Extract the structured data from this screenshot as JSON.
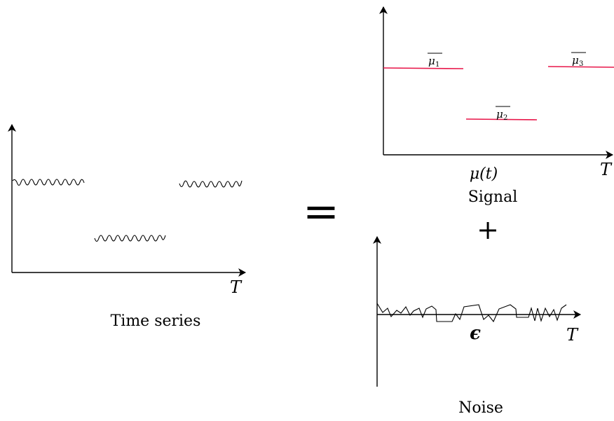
{
  "time_series_panel": {
    "caption": "Time series",
    "axis_label": "T"
  },
  "equals_sign": "=",
  "signal_panel": {
    "axis_label": "T",
    "function_label": "μ(t)",
    "caption": "Signal",
    "mean_labels": [
      "μ1",
      "μ2",
      "μ3"
    ],
    "mean_color": "#e8174a"
  },
  "plus_sign": "+",
  "noise_panel": {
    "axis_label": "T",
    "epsilon_label": "ϵ",
    "caption": "Noise"
  }
}
